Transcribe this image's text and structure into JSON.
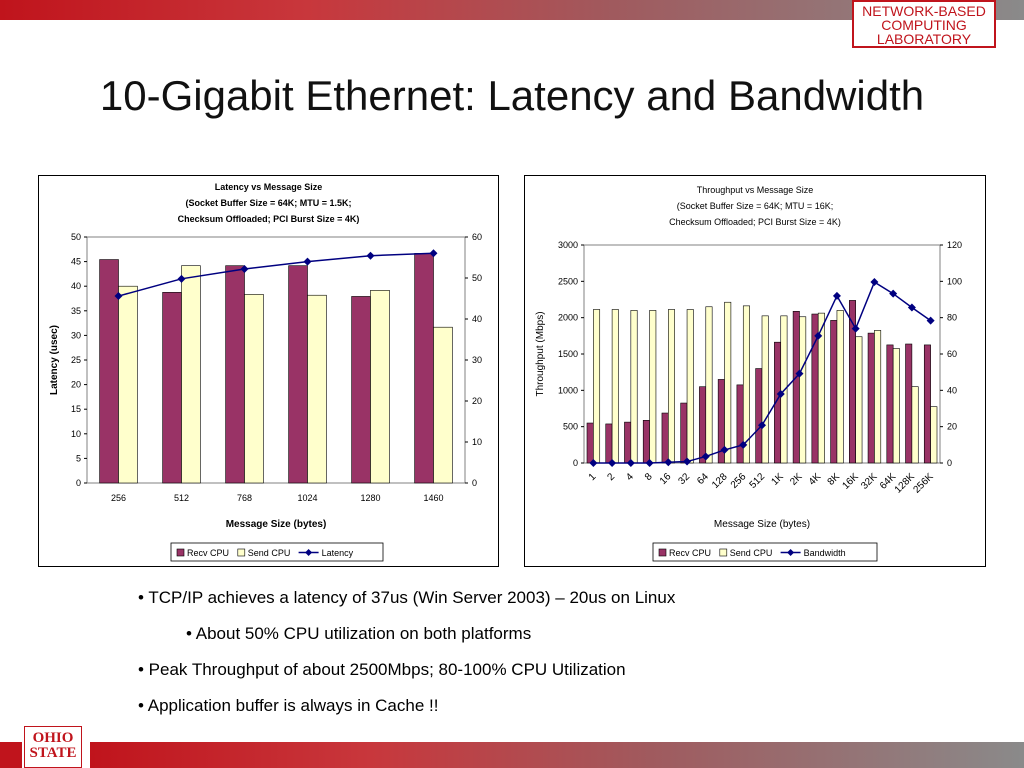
{
  "header": {
    "lab_line1": "NETWORK-BASED",
    "lab_line2": "COMPUTING",
    "lab_line3": "LABORATORY",
    "title": "10-Gigabit Ethernet: Latency and Bandwidth"
  },
  "colors": {
    "recv": "#993366",
    "send": "#ffffcc",
    "line": "#000080",
    "brand_red": "#c0141c"
  },
  "chart_data": [
    {
      "type": "bar",
      "title_lines": [
        "Latency vs Message Size",
        "(Socket Buffer Size = 64K; MTU = 1.5K;",
        "Checksum Offloaded; PCI Burst Size = 4K)"
      ],
      "categories": [
        "256",
        "512",
        "768",
        "1024",
        "1280",
        "1460"
      ],
      "series": [
        {
          "name": "Recv CPU",
          "kind": "bar",
          "axis": "right",
          "values": [
            54.5,
            46.5,
            53,
            53,
            45.5,
            56
          ]
        },
        {
          "name": "Send CPU",
          "kind": "bar",
          "axis": "right",
          "values": [
            48,
            53,
            46,
            45.8,
            47,
            38
          ]
        },
        {
          "name": "Latency",
          "kind": "line",
          "axis": "left",
          "values": [
            38,
            41.5,
            43.5,
            45,
            46.2,
            46.7
          ]
        }
      ],
      "xlabel": "Message Size (bytes)",
      "ylabel": "Latency (usec)",
      "ylim": [
        0,
        50
      ],
      "yticks": [
        "0",
        "5",
        "10",
        "15",
        "20",
        "25",
        "30",
        "35",
        "40",
        "45",
        "50"
      ],
      "y2lim": [
        0,
        60
      ],
      "y2ticks": [
        "0",
        "10",
        "20",
        "30",
        "40",
        "50",
        "60"
      ],
      "legend": [
        "Recv CPU",
        "Send CPU",
        "Latency"
      ],
      "legend_position": "bottom"
    },
    {
      "type": "bar",
      "title_lines": [
        "Throughput vs Message Size",
        "(Socket Buffer Size = 64K; MTU = 16K;",
        "Checksum Offloaded; PCI Burst Size = 4K)"
      ],
      "categories": [
        "1",
        "2",
        "4",
        "8",
        "16",
        "32",
        "64",
        "128",
        "256",
        "512",
        "1K",
        "2K",
        "4K",
        "8K",
        "16K",
        "32K",
        "64K",
        "128K",
        "256K"
      ],
      "series": [
        {
          "name": "Recv CPU",
          "kind": "bar",
          "axis": "right",
          "values": [
            22,
            21.5,
            22.5,
            23.5,
            27.5,
            33,
            42,
            46,
            43,
            52,
            66.5,
            83.5,
            82,
            78.5,
            89.5,
            71.5,
            65,
            65.5,
            65
          ]
        },
        {
          "name": "Send CPU",
          "kind": "bar",
          "axis": "right",
          "values": [
            84.5,
            84.5,
            84,
            84,
            84.5,
            84.5,
            86,
            88.5,
            86.5,
            81,
            81,
            80.5,
            82.5,
            84,
            69.5,
            73,
            63,
            42,
            31
          ]
        },
        {
          "name": "Bandwidth",
          "kind": "line",
          "axis": "left",
          "values": [
            0,
            0,
            0,
            0,
            10,
            20,
            90,
            180,
            250,
            520,
            950,
            1230,
            1750,
            2300,
            1850,
            2490,
            2330,
            2140,
            1960
          ]
        }
      ],
      "xlabel": "Message Size (bytes)",
      "ylabel": "Throughput (Mbps)",
      "ylim": [
        0,
        3000
      ],
      "yticks": [
        "0",
        "500",
        "1000",
        "1500",
        "2000",
        "2500",
        "3000"
      ],
      "y2lim": [
        0,
        120
      ],
      "y2ticks": [
        "0",
        "20",
        "40",
        "60",
        "80",
        "100",
        "120"
      ],
      "legend": [
        "Recv CPU",
        "Send CPU",
        "Bandwidth"
      ],
      "legend_position": "bottom"
    }
  ],
  "bullets": [
    "• TCP/IP achieves a latency of 37us (Win Server 2003) – 20us on Linux",
    "• About 50% CPU utilization on both platforms",
    "• Peak Throughput of about 2500Mbps; 80-100% CPU Utilization",
    "• Application buffer is always in Cache !!"
  ],
  "logo": {
    "line1": "OHIO",
    "line2": "STATE"
  }
}
